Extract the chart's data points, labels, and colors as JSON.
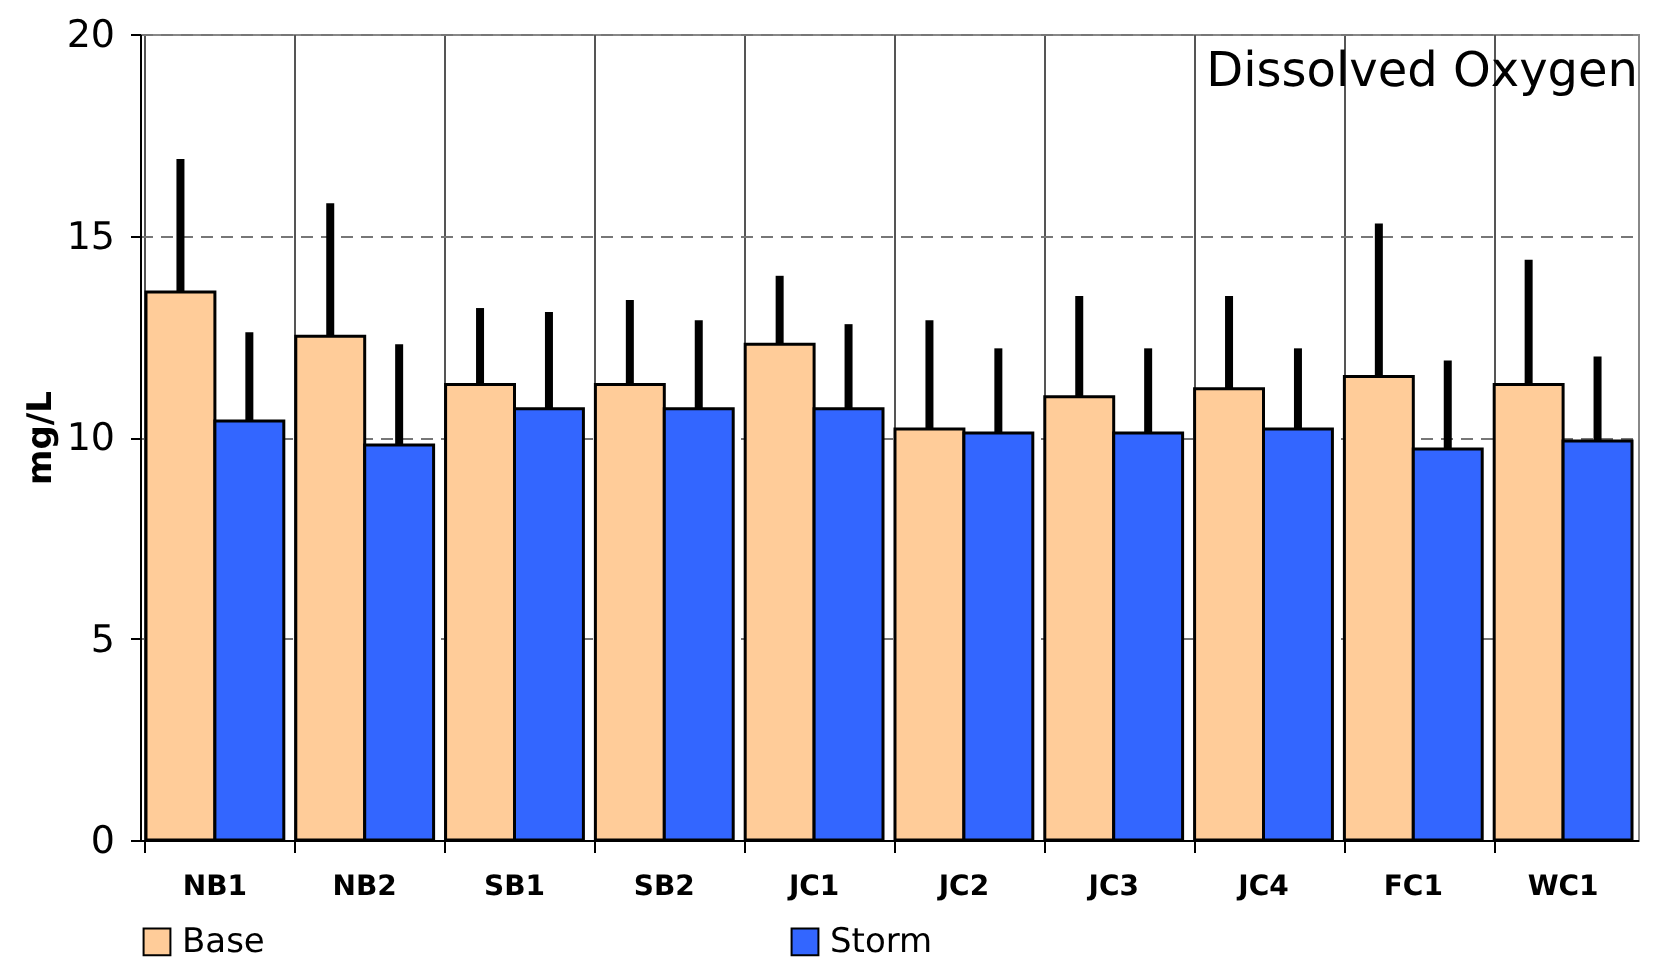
{
  "chart_data": {
    "type": "bar",
    "title": "Dissolved Oxygen",
    "ylabel": "mg/L",
    "categories": [
      "NB1",
      "NB2",
      "SB1",
      "SB2",
      "JC1",
      "JC2",
      "JC3",
      "JC4",
      "FC1",
      "WC1"
    ],
    "series": [
      {
        "name": "Base",
        "color": "#ffcc99",
        "values": [
          13.6,
          12.5,
          11.3,
          11.3,
          12.3,
          10.2,
          11.0,
          11.2,
          11.5,
          11.3
        ],
        "errors": [
          [
            13.6,
            16.9
          ],
          [
            12.5,
            15.8
          ],
          [
            11.3,
            13.2
          ],
          [
            11.3,
            13.4
          ],
          [
            12.3,
            14.0
          ],
          [
            10.2,
            12.9
          ],
          [
            11.0,
            13.5
          ],
          [
            11.2,
            13.5
          ],
          [
            11.5,
            15.3
          ],
          [
            11.3,
            14.4
          ]
        ]
      },
      {
        "name": "Storm",
        "color": "#3366ff",
        "values": [
          10.4,
          9.8,
          10.7,
          10.7,
          10.7,
          10.1,
          10.1,
          10.2,
          9.7,
          9.9
        ],
        "errors": [
          [
            10.4,
            12.6
          ],
          [
            9.8,
            12.3
          ],
          [
            10.7,
            13.1
          ],
          [
            10.7,
            12.9
          ],
          [
            10.7,
            12.8
          ],
          [
            10.1,
            12.2
          ],
          [
            10.1,
            12.2
          ],
          [
            10.2,
            12.2
          ],
          [
            9.7,
            11.9
          ],
          [
            9.9,
            12.0
          ]
        ]
      }
    ],
    "ylim": [
      0,
      20
    ],
    "yticks": [
      0,
      5,
      10,
      15,
      20
    ],
    "grid": true,
    "legend": "bottom"
  }
}
